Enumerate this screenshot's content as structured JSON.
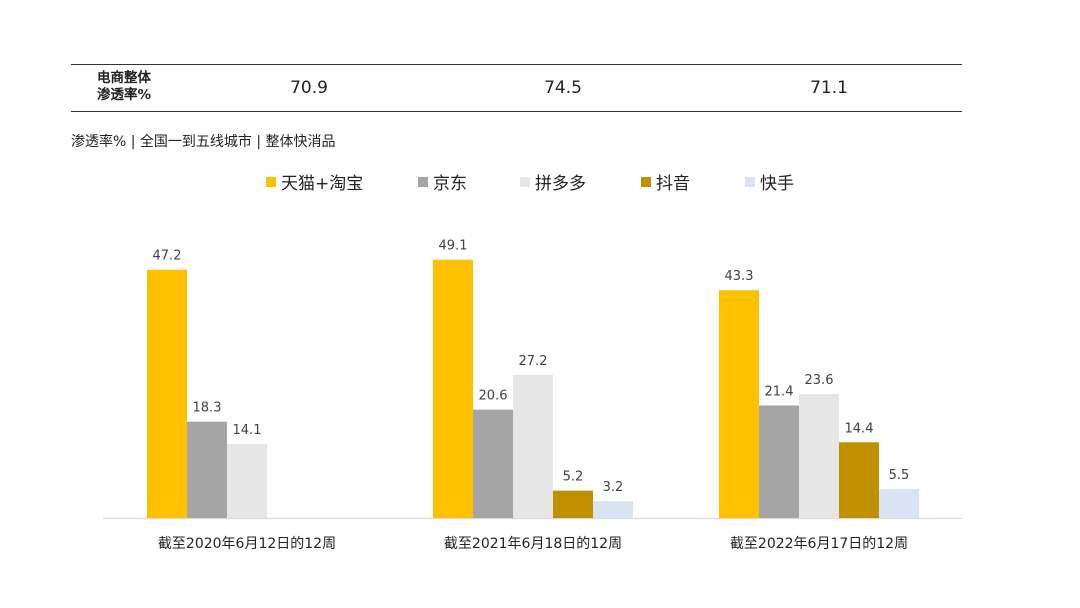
{
  "penetration_table": {
    "row_label": "电商整体\n渗透率%",
    "values": [
      "70.9",
      "74.5",
      "71.1"
    ]
  },
  "subtitle": "渗透率% | 全国一到五线城市 | 整体快消品",
  "chart_data": {
    "type": "bar",
    "categories": [
      "截至2020年6月12日的12周",
      "截至2021年6月18日的12周",
      "截至2022年6月17日的12周"
    ],
    "series": [
      {
        "name": "天猫+淘宝",
        "color": "#FFC000",
        "values": [
          47.2,
          49.1,
          43.3
        ]
      },
      {
        "name": "京东",
        "color": "#A5A5A5",
        "values": [
          18.3,
          20.6,
          21.4
        ]
      },
      {
        "name": "拼多多",
        "color": "#E6E6E6",
        "values": [
          14.1,
          27.2,
          23.6
        ]
      },
      {
        "name": "抖音",
        "color": "#BF9000",
        "values": [
          null,
          5.2,
          14.4
        ]
      },
      {
        "name": "快手",
        "color": "#DAE3F3",
        "values": [
          null,
          3.2,
          5.5
        ]
      }
    ],
    "ylim": [
      0,
      50
    ],
    "grid": false,
    "legend_position": "top"
  }
}
